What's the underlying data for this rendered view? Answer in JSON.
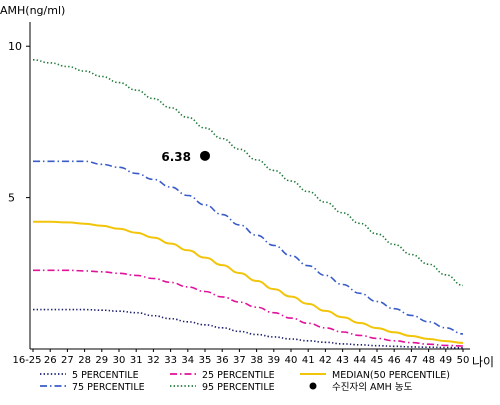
{
  "chart_data": {
    "type": "line",
    "ylabel": "AMH(ng/ml)",
    "xlabel": "나이",
    "ylim": [
      0,
      10.8
    ],
    "yticks": [
      10,
      5
    ],
    "grid": false,
    "legend_position": "bottom",
    "categories": [
      "16-25",
      "26",
      "27",
      "28",
      "29",
      "30",
      "31",
      "32",
      "33",
      "34",
      "35",
      "36",
      "37",
      "38",
      "39",
      "40",
      "41",
      "42",
      "43",
      "44",
      "45",
      "46",
      "47",
      "48",
      "49",
      "50"
    ],
    "series": [
      {
        "name": "5 PERCENTILE",
        "color": "#1a1f6e",
        "dash": "dotted",
        "values": [
          1.3,
          1.3,
          1.3,
          1.3,
          1.28,
          1.25,
          1.2,
          1.1,
          1.0,
          0.9,
          0.8,
          0.7,
          0.58,
          0.48,
          0.4,
          0.33,
          0.27,
          0.22,
          0.17,
          0.14,
          0.11,
          0.09,
          0.07,
          0.06,
          0.05,
          0.04
        ]
      },
      {
        "name": "25 PERCENTILE",
        "color": "#e0119a",
        "dash": "dashdot",
        "values": [
          2.6,
          2.6,
          2.6,
          2.58,
          2.55,
          2.5,
          2.43,
          2.33,
          2.2,
          2.05,
          1.9,
          1.72,
          1.55,
          1.38,
          1.2,
          1.02,
          0.85,
          0.7,
          0.56,
          0.45,
          0.35,
          0.27,
          0.21,
          0.16,
          0.12,
          0.1
        ]
      },
      {
        "name": "MEDIAN(50 PERCENTILE)",
        "color": "#f2c40a",
        "dash": "solid",
        "values": [
          4.2,
          4.2,
          4.18,
          4.14,
          4.07,
          3.97,
          3.84,
          3.68,
          3.48,
          3.26,
          3.02,
          2.77,
          2.51,
          2.25,
          1.98,
          1.73,
          1.49,
          1.26,
          1.05,
          0.86,
          0.69,
          0.55,
          0.43,
          0.33,
          0.26,
          0.2
        ]
      },
      {
        "name": "75 PERCENTILE",
        "color": "#3a5cc8",
        "dash": "dashdot",
        "values": [
          6.2,
          6.2,
          6.2,
          6.2,
          6.1,
          6.0,
          5.8,
          5.6,
          5.35,
          5.07,
          4.76,
          4.44,
          4.1,
          3.76,
          3.42,
          3.08,
          2.75,
          2.43,
          2.13,
          1.84,
          1.57,
          1.33,
          1.11,
          0.9,
          0.7,
          0.5
        ]
      },
      {
        "name": "95 PERCENTILE",
        "color": "#1f7a3a",
        "dash": "dotted",
        "values": [
          9.55,
          9.45,
          9.33,
          9.18,
          9.0,
          8.8,
          8.55,
          8.27,
          7.97,
          7.65,
          7.3,
          6.95,
          6.6,
          6.25,
          5.9,
          5.55,
          5.2,
          4.85,
          4.5,
          4.15,
          3.8,
          3.45,
          3.12,
          2.8,
          2.45,
          2.1
        ]
      }
    ],
    "marker": {
      "label": "수진자의 AMH 농도",
      "value_label": "6.38",
      "x": "35",
      "y": 6.38,
      "color": "#000000"
    }
  }
}
